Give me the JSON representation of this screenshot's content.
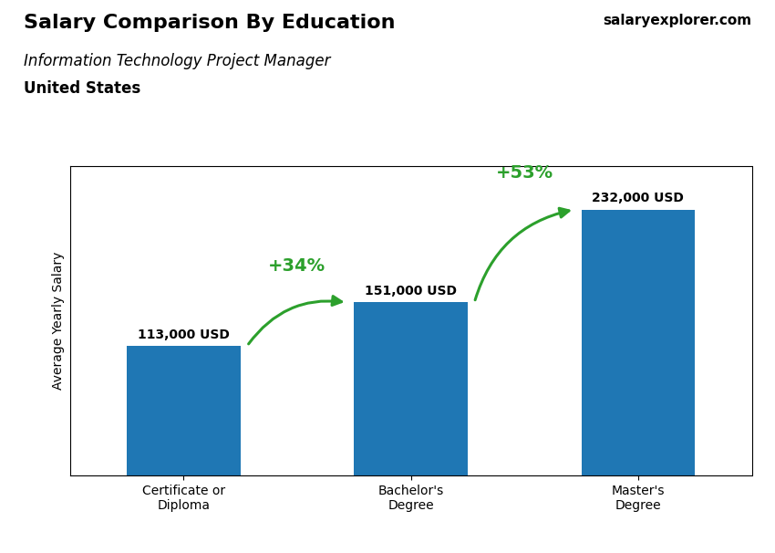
{
  "chart_data": {
    "type": "bar",
    "title": "Salary Comparison By Education",
    "subtitle": "Information Technology Project Manager",
    "ylabel": "Average Yearly Salary",
    "categories": [
      "Certificate or\nDiploma",
      "Bachelor's\nDegree",
      "Master's\nDegree"
    ],
    "values": [
      113000,
      151000,
      232000
    ],
    "value_labels": [
      "113,000 USD",
      "151,000 USD",
      "232,000 USD"
    ],
    "data_labels": true,
    "ylim": [
      0,
      270000
    ],
    "tick_labels": "x",
    "grid": false,
    "annotations": [
      {
        "text": "United States"
      },
      {
        "text": "salaryexplorer.com"
      },
      {
        "text": "+34%",
        "from": "Certificate or\nDiploma",
        "to": "Bachelor's\nDegree"
      },
      {
        "text": "+53%",
        "from": "Bachelor's\nDegree",
        "to": "Master's\nDegree"
      }
    ]
  }
}
